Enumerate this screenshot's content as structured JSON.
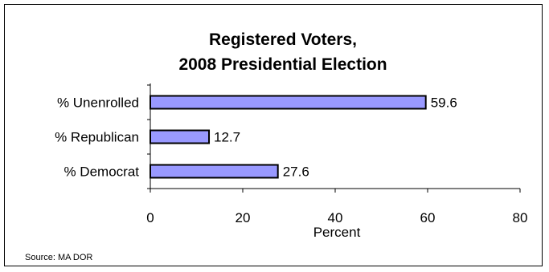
{
  "chart_data": {
    "type": "bar",
    "orientation": "horizontal",
    "title_lines": [
      "Registered Voters,",
      "2008 Presidential Election"
    ],
    "categories": [
      "% Unenrolled",
      "% Republican",
      "% Democrat"
    ],
    "values": [
      59.6,
      12.7,
      27.6
    ],
    "data_labels": [
      "59.6",
      "12.7",
      "27.6"
    ],
    "xlabel": "Percent",
    "ylabel": "",
    "xlim": [
      0,
      80
    ],
    "xticks": [
      "0",
      "20",
      "40",
      "60",
      "80"
    ],
    "grid": false,
    "legend": "none",
    "bar_color": "#9999ff",
    "source": "Source: MA DOR"
  }
}
